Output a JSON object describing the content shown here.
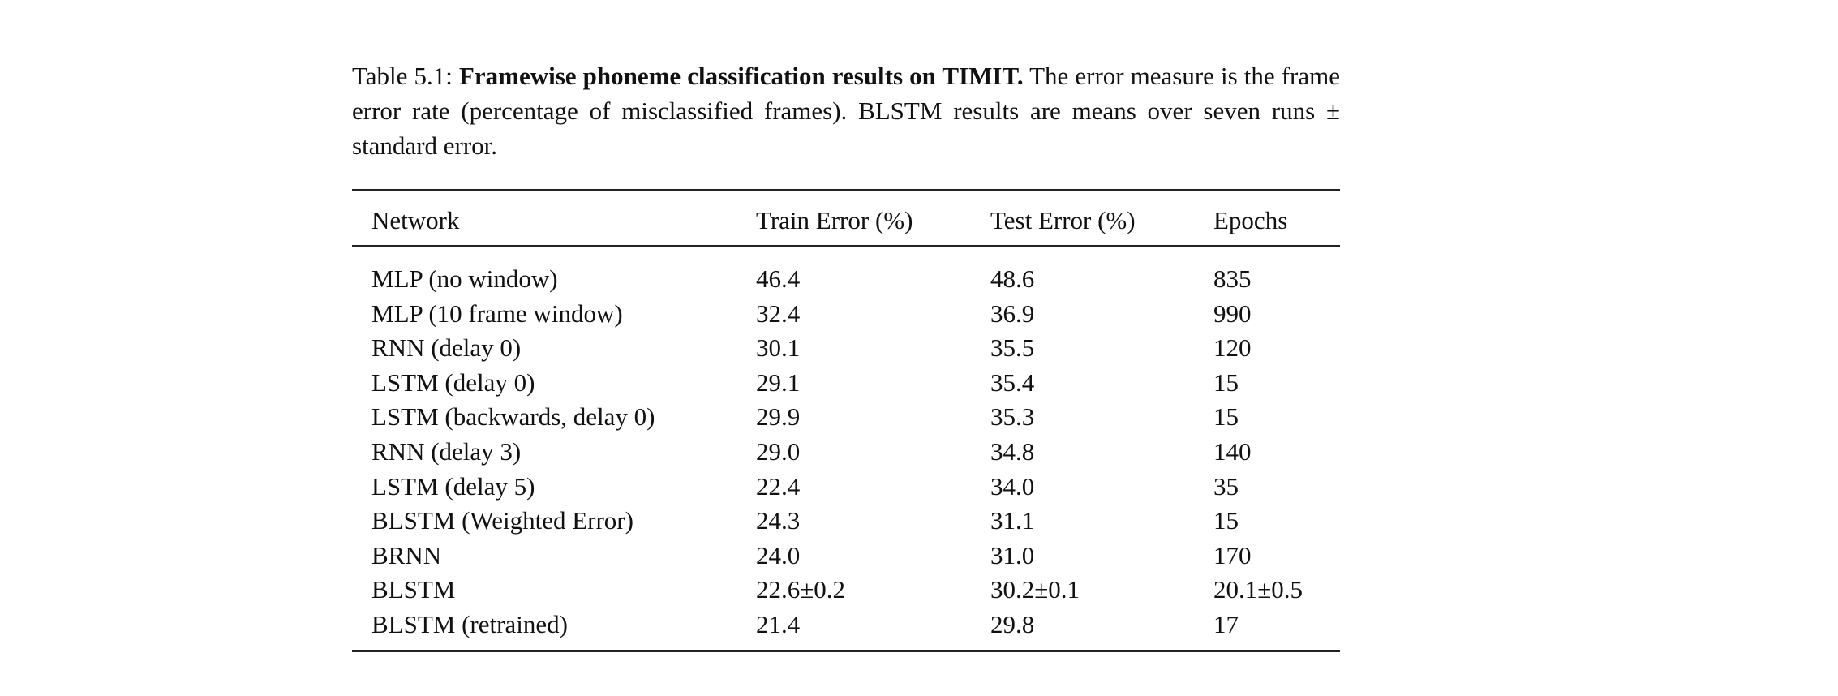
{
  "caption": {
    "label": "Table 5.1:",
    "bold": "Framewise phoneme classification results on TIMIT.",
    "text": "The error measure is the frame error rate (percentage of misclassified frames). BLSTM results are means over seven runs ± standard error."
  },
  "table": {
    "header": [
      "Network",
      "Train Error (%)",
      "Test Error (%)",
      "Epochs"
    ],
    "rows": [
      [
        "MLP (no window)",
        "46.4",
        "48.6",
        "835"
      ],
      [
        "MLP (10 frame window)",
        "32.4",
        "36.9",
        "990"
      ],
      [
        "RNN (delay 0)",
        "30.1",
        "35.5",
        "120"
      ],
      [
        "LSTM (delay 0)",
        "29.1",
        "35.4",
        "15"
      ],
      [
        "LSTM (backwards, delay 0)",
        "29.9",
        "35.3",
        "15"
      ],
      [
        "RNN (delay 3)",
        "29.0",
        "34.8",
        "140"
      ],
      [
        "LSTM (delay 5)",
        "22.4",
        "34.0",
        "35"
      ],
      [
        "BLSTM (Weighted Error)",
        "24.3",
        "31.1",
        "15"
      ],
      [
        "BRNN",
        "24.0",
        "31.0",
        "170"
      ],
      [
        "BLSTM",
        "22.6±0.2",
        "30.2±0.1",
        "20.1±0.5"
      ],
      [
        "BLSTM (retrained)",
        "21.4",
        "29.8",
        "17"
      ]
    ]
  }
}
